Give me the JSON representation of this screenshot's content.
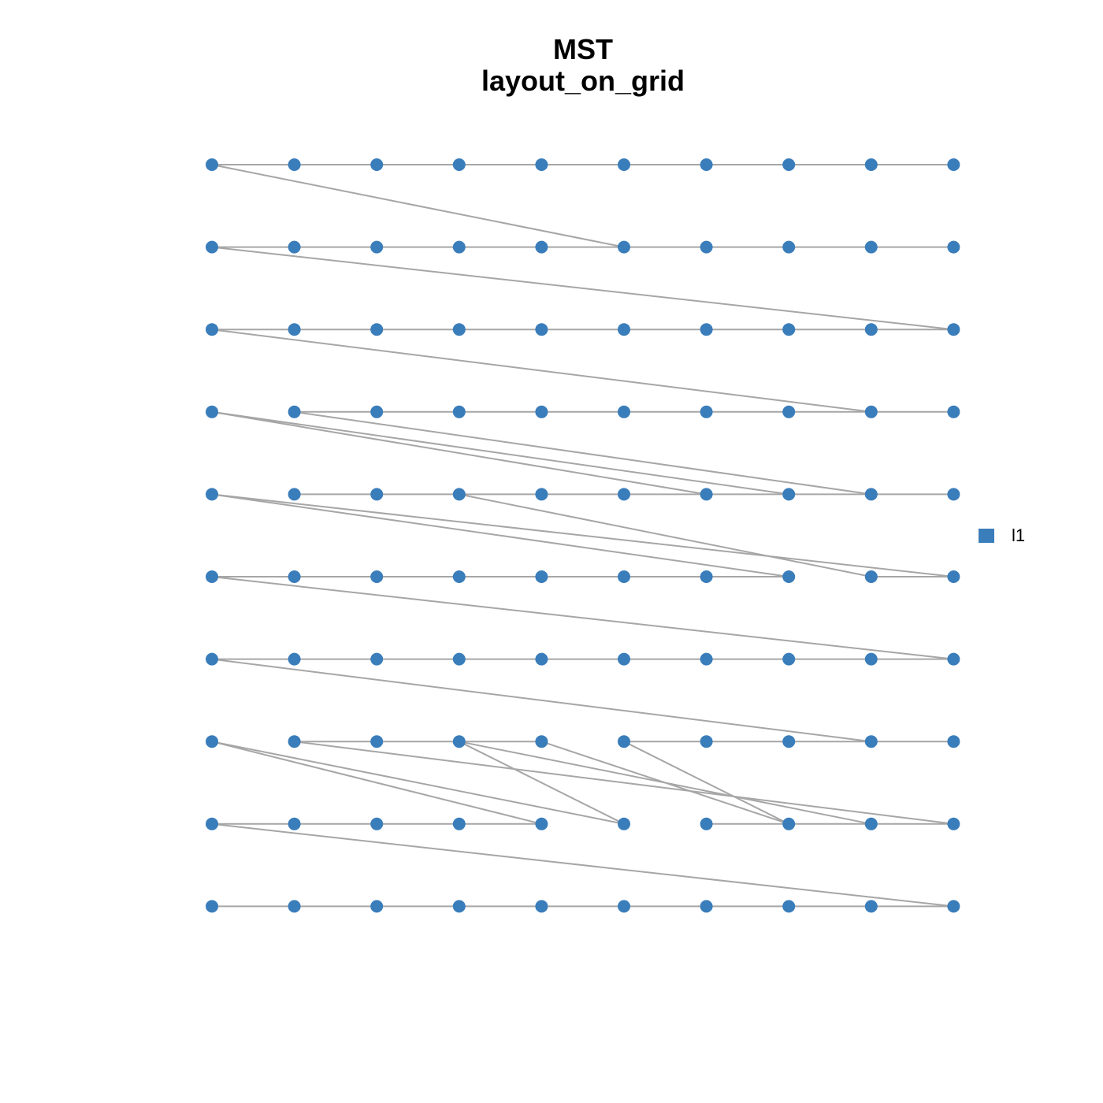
{
  "title": [
    "MST",
    "layout_on_grid"
  ],
  "legend": {
    "label": "l1",
    "color": "#3a7dbb"
  },
  "edge_color": "#a6a6a6"
}
